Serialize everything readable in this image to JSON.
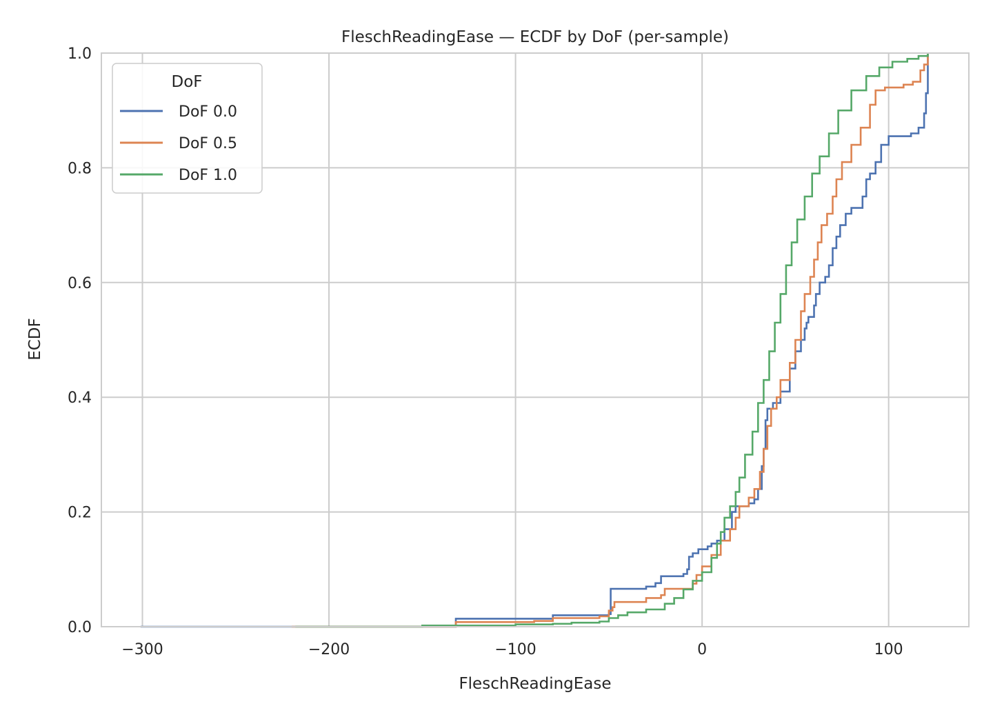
{
  "chart_data": {
    "type": "line",
    "step": true,
    "title": "FleschReadingEase — ECDF by DoF (per-sample)",
    "xlabel": "FleschReadingEase",
    "ylabel": "ECDF",
    "xlim": [
      -322,
      143
    ],
    "ylim": [
      0,
      1
    ],
    "xticks": [
      -300,
      -200,
      -100,
      0,
      100
    ],
    "xtick_labels": [
      "−300",
      "−200",
      "−100",
      "0",
      "100"
    ],
    "yticks": [
      0,
      0.2,
      0.4,
      0.6,
      0.8,
      1.0
    ],
    "ytick_labels": [
      "0.0",
      "0.2",
      "0.4",
      "0.6",
      "0.8",
      "1.0"
    ],
    "grid": true,
    "legend": {
      "title": "DoF",
      "placement": "top-left"
    },
    "series": [
      {
        "name": "DoF 0.0",
        "color": "#4c72b0",
        "points": [
          [
            -301,
            0
          ],
          [
            -132,
            0
          ],
          [
            -132,
            0.014
          ],
          [
            -80,
            0.016
          ],
          [
            -80,
            0.02
          ],
          [
            -50,
            0.022
          ],
          [
            -49,
            0.03
          ],
          [
            -49,
            0.066
          ],
          [
            -30,
            0.07
          ],
          [
            -25,
            0.076
          ],
          [
            -22,
            0.088
          ],
          [
            -10,
            0.092
          ],
          [
            -8,
            0.1
          ],
          [
            -7,
            0.122
          ],
          [
            -5,
            0.128
          ],
          [
            -2,
            0.135
          ],
          [
            3,
            0.14
          ],
          [
            5,
            0.145
          ],
          [
            8,
            0.15
          ],
          [
            12,
            0.17
          ],
          [
            16,
            0.2
          ],
          [
            18,
            0.21
          ],
          [
            25,
            0.215
          ],
          [
            28,
            0.222
          ],
          [
            30,
            0.24
          ],
          [
            32,
            0.28
          ],
          [
            33,
            0.31
          ],
          [
            34,
            0.36
          ],
          [
            35,
            0.38
          ],
          [
            38,
            0.39
          ],
          [
            42,
            0.41
          ],
          [
            47,
            0.45
          ],
          [
            50,
            0.48
          ],
          [
            53,
            0.5
          ],
          [
            55,
            0.52
          ],
          [
            56,
            0.53
          ],
          [
            57,
            0.54
          ],
          [
            60,
            0.56
          ],
          [
            61,
            0.58
          ],
          [
            63,
            0.6
          ],
          [
            66,
            0.61
          ],
          [
            68,
            0.63
          ],
          [
            70,
            0.66
          ],
          [
            72,
            0.68
          ],
          [
            74,
            0.7
          ],
          [
            77,
            0.72
          ],
          [
            80,
            0.73
          ],
          [
            86,
            0.75
          ],
          [
            88,
            0.78
          ],
          [
            90,
            0.79
          ],
          [
            93,
            0.81
          ],
          [
            96,
            0.84
          ],
          [
            100,
            0.855
          ],
          [
            112,
            0.86
          ],
          [
            116,
            0.87
          ],
          [
            119,
            0.895
          ],
          [
            120,
            0.93
          ],
          [
            121,
            0.98
          ],
          [
            121,
            1.0
          ]
        ]
      },
      {
        "name": "DoF 0.5",
        "color": "#dd8452",
        "points": [
          [
            -220,
            0
          ],
          [
            -132,
            0.003
          ],
          [
            -132,
            0.008
          ],
          [
            -90,
            0.01
          ],
          [
            -80,
            0.012
          ],
          [
            -80,
            0.015
          ],
          [
            -55,
            0.018
          ],
          [
            -50,
            0.028
          ],
          [
            -48,
            0.034
          ],
          [
            -47,
            0.043
          ],
          [
            -30,
            0.05
          ],
          [
            -22,
            0.055
          ],
          [
            -20,
            0.066
          ],
          [
            -5,
            0.075
          ],
          [
            -3,
            0.09
          ],
          [
            0,
            0.105
          ],
          [
            5,
            0.125
          ],
          [
            10,
            0.15
          ],
          [
            15,
            0.17
          ],
          [
            18,
            0.19
          ],
          [
            20,
            0.21
          ],
          [
            25,
            0.225
          ],
          [
            28,
            0.24
          ],
          [
            31,
            0.27
          ],
          [
            33,
            0.31
          ],
          [
            35,
            0.35
          ],
          [
            37,
            0.38
          ],
          [
            40,
            0.4
          ],
          [
            42,
            0.43
          ],
          [
            47,
            0.46
          ],
          [
            50,
            0.5
          ],
          [
            53,
            0.55
          ],
          [
            55,
            0.58
          ],
          [
            58,
            0.61
          ],
          [
            60,
            0.64
          ],
          [
            62,
            0.67
          ],
          [
            64,
            0.7
          ],
          [
            67,
            0.72
          ],
          [
            70,
            0.75
          ],
          [
            72,
            0.78
          ],
          [
            75,
            0.81
          ],
          [
            80,
            0.84
          ],
          [
            85,
            0.87
          ],
          [
            90,
            0.91
          ],
          [
            93,
            0.935
          ],
          [
            98,
            0.94
          ],
          [
            108,
            0.945
          ],
          [
            113,
            0.95
          ],
          [
            117,
            0.97
          ],
          [
            119,
            0.98
          ],
          [
            121,
            1.0
          ]
        ]
      },
      {
        "name": "DoF 1.0",
        "color": "#55a868",
        "points": [
          [
            -218,
            0
          ],
          [
            -150,
            0.002
          ],
          [
            -100,
            0.004
          ],
          [
            -80,
            0.005
          ],
          [
            -70,
            0.007
          ],
          [
            -55,
            0.009
          ],
          [
            -50,
            0.015
          ],
          [
            -45,
            0.02
          ],
          [
            -40,
            0.025
          ],
          [
            -30,
            0.03
          ],
          [
            -20,
            0.04
          ],
          [
            -15,
            0.05
          ],
          [
            -10,
            0.065
          ],
          [
            -5,
            0.08
          ],
          [
            0,
            0.095
          ],
          [
            5,
            0.12
          ],
          [
            8,
            0.145
          ],
          [
            10,
            0.165
          ],
          [
            12,
            0.19
          ],
          [
            15,
            0.21
          ],
          [
            18,
            0.235
          ],
          [
            20,
            0.26
          ],
          [
            23,
            0.3
          ],
          [
            27,
            0.34
          ],
          [
            30,
            0.39
          ],
          [
            33,
            0.43
          ],
          [
            36,
            0.48
          ],
          [
            39,
            0.53
          ],
          [
            42,
            0.58
          ],
          [
            45,
            0.63
          ],
          [
            48,
            0.67
          ],
          [
            51,
            0.71
          ],
          [
            55,
            0.75
          ],
          [
            59,
            0.79
          ],
          [
            63,
            0.82
          ],
          [
            68,
            0.86
          ],
          [
            73,
            0.9
          ],
          [
            80,
            0.935
          ],
          [
            88,
            0.96
          ],
          [
            95,
            0.975
          ],
          [
            102,
            0.985
          ],
          [
            110,
            0.99
          ],
          [
            116,
            0.995
          ],
          [
            121,
            1.0
          ]
        ]
      }
    ]
  }
}
